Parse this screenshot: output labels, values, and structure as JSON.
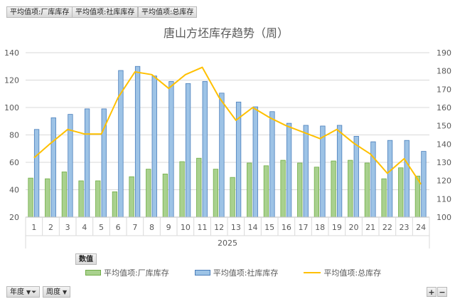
{
  "pivot_fields": {
    "value_fields": [
      "平均值项:厂库库存",
      "平均值项:社库库存",
      "平均值项:总库存"
    ],
    "values_label": "数值",
    "row_fields": [
      "年度",
      "周度"
    ]
  },
  "zoom": {
    "plus": "+",
    "minus": "−"
  },
  "colors": {
    "factory_fill": "#a9d18e",
    "factory_border": "#70ad47",
    "social_fill": "#9dc3e6",
    "social_border": "#4a7ebb",
    "total_line": "#ffc000"
  },
  "icons": {
    "dropdown": "dropdown-arrow-icon",
    "filter": "filter-funnel-icon"
  },
  "chart_data": {
    "type": "bar",
    "title": "唐山方坯库存趋势（周）",
    "categories": [
      "1",
      "2",
      "3",
      "4",
      "5",
      "6",
      "7",
      "8",
      "9",
      "10",
      "11",
      "12",
      "13",
      "14",
      "15",
      "16",
      "17",
      "18",
      "19",
      "20",
      "21",
      "22",
      "23",
      "24"
    ],
    "group_label": "2025",
    "series": [
      {
        "name": "平均值项:厂库库存",
        "type": "bar",
        "axis": "left",
        "values": [
          48.5,
          48,
          53,
          46.5,
          46.5,
          38.5,
          49.5,
          55,
          51.5,
          60.5,
          63,
          55,
          49,
          59.5,
          57.5,
          61.5,
          59.5,
          56.5,
          61,
          61.5,
          59.5,
          48,
          56,
          50
        ]
      },
      {
        "name": "平均值项:社库库存",
        "type": "bar",
        "axis": "left",
        "values": [
          84,
          92.5,
          95,
          99,
          99,
          127,
          130,
          123,
          119,
          117.5,
          119,
          110.5,
          104,
          100.5,
          97,
          88.5,
          87,
          86.5,
          87,
          79,
          75,
          76,
          76,
          68
        ]
      },
      {
        "name": "平均值项:总库存",
        "type": "line",
        "axis": "right",
        "values": [
          132.5,
          140.5,
          148,
          145.5,
          145.5,
          165.5,
          179.5,
          178,
          170.5,
          178,
          182,
          165.5,
          153,
          160,
          154.5,
          150,
          146.5,
          143,
          148,
          140.5,
          134.5,
          124,
          132,
          118
        ]
      }
    ],
    "y_left": {
      "min": 20,
      "max": 140,
      "ticks": [
        "20",
        "40",
        "60",
        "80",
        "100",
        "120",
        "140"
      ]
    },
    "y_right": {
      "min": 100,
      "max": 190,
      "ticks": [
        "100",
        "110",
        "120",
        "130",
        "140",
        "150",
        "160",
        "170",
        "180",
        "190"
      ]
    },
    "grid": true,
    "legend_position": "bottom"
  }
}
